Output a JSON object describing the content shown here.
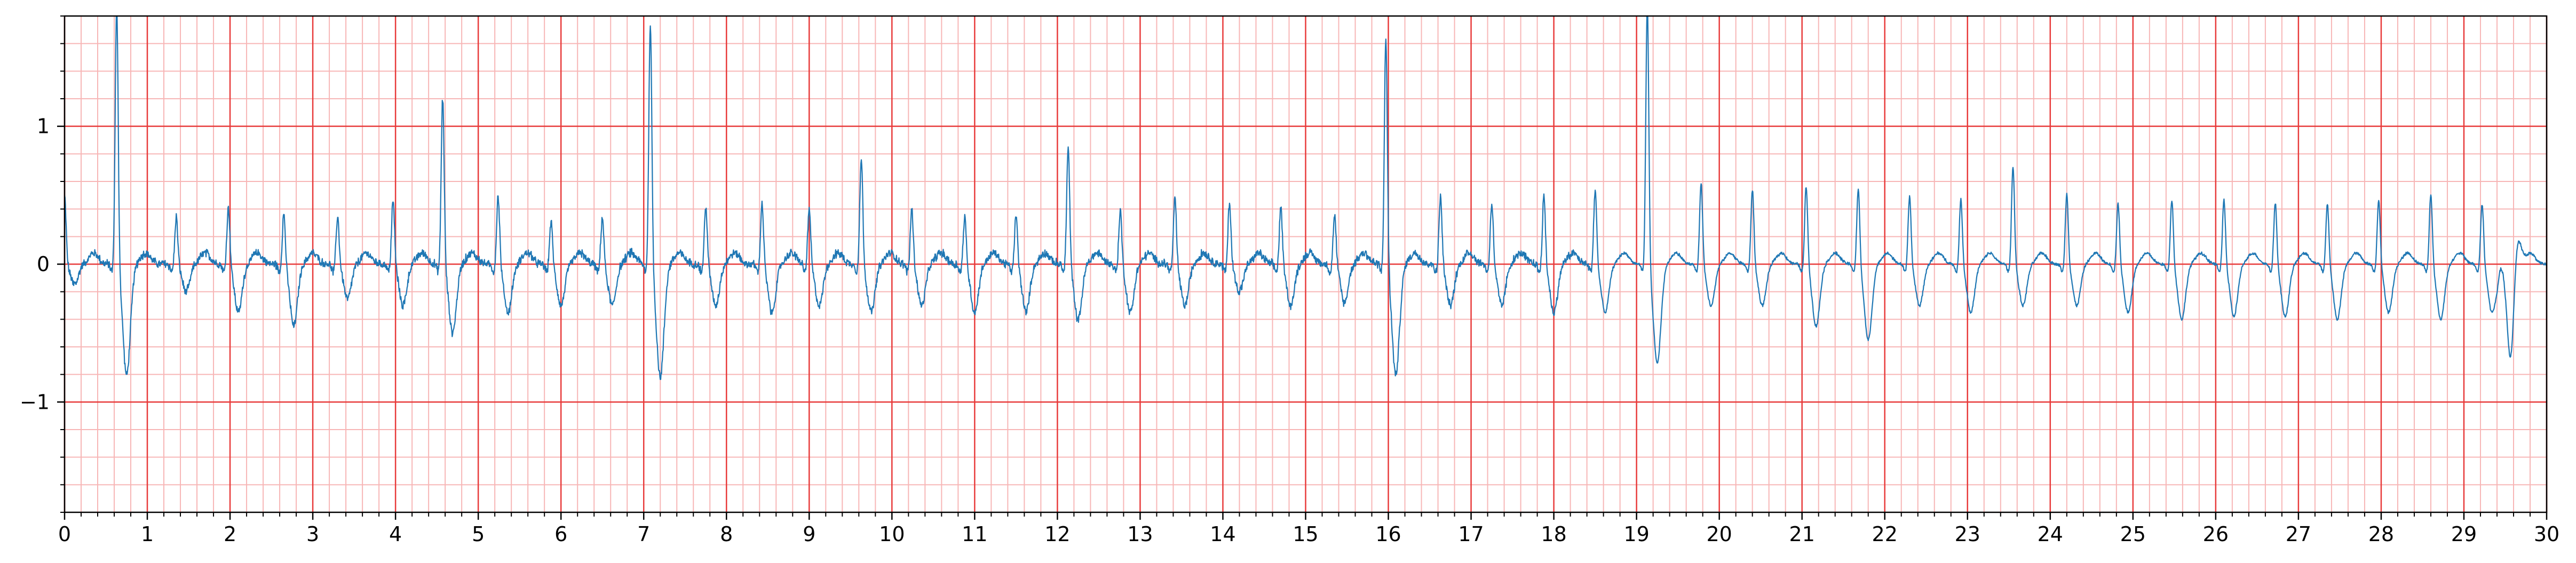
{
  "chart_data": {
    "type": "line",
    "title": "",
    "xlabel": "",
    "ylabel": "",
    "xlim": [
      0,
      30
    ],
    "ylim": [
      -1.8,
      1.8
    ],
    "x_ticks": [
      0,
      1,
      2,
      3,
      4,
      5,
      6,
      7,
      8,
      9,
      10,
      11,
      12,
      13,
      14,
      15,
      16,
      17,
      18,
      19,
      20,
      21,
      22,
      23,
      24,
      25,
      26,
      27,
      28,
      29,
      30
    ],
    "x_tick_labels": [
      "0",
      "1",
      "2",
      "3",
      "4",
      "5",
      "6",
      "7",
      "8",
      "9",
      "10",
      "11",
      "12",
      "13",
      "14",
      "15",
      "16",
      "17",
      "18",
      "19",
      "20",
      "21",
      "22",
      "23",
      "24",
      "25",
      "26",
      "27",
      "28",
      "29",
      "30"
    ],
    "y_ticks": [
      -1,
      0,
      1
    ],
    "y_tick_labels": [
      "−1",
      "0",
      "1"
    ],
    "x_minor_step": 0.2,
    "y_minor_step": 0.2,
    "grid": {
      "major": true,
      "minor": true,
      "major_color": "#e83b3b",
      "minor_color": "#f7b6b6"
    },
    "series": [
      {
        "color": "#1f77b4",
        "beats": [
          [
            0.0,
            0.5,
            -0.15
          ],
          [
            0.63,
            1.9,
            -0.8
          ],
          [
            1.35,
            0.35,
            -0.2
          ],
          [
            1.98,
            0.42,
            -0.35
          ],
          [
            2.65,
            0.38,
            -0.45
          ],
          [
            3.3,
            0.35,
            -0.25
          ],
          [
            3.97,
            0.47,
            -0.3
          ],
          [
            4.57,
            1.22,
            -0.5
          ],
          [
            5.24,
            0.5,
            -0.35
          ],
          [
            5.88,
            0.32,
            -0.3
          ],
          [
            6.5,
            0.35,
            -0.3
          ],
          [
            7.08,
            1.78,
            -0.82
          ],
          [
            7.75,
            0.42,
            -0.3
          ],
          [
            8.43,
            0.45,
            -0.35
          ],
          [
            9.0,
            0.4,
            -0.3
          ],
          [
            9.63,
            0.78,
            -0.35
          ],
          [
            10.24,
            0.4,
            -0.3
          ],
          [
            10.88,
            0.35,
            -0.35
          ],
          [
            11.5,
            0.36,
            -0.35
          ],
          [
            12.13,
            0.85,
            -0.4
          ],
          [
            12.76,
            0.4,
            -0.35
          ],
          [
            13.42,
            0.48,
            -0.3
          ],
          [
            14.08,
            0.45,
            -0.2
          ],
          [
            14.7,
            0.42,
            -0.3
          ],
          [
            15.35,
            0.36,
            -0.28
          ],
          [
            15.97,
            1.65,
            -0.8
          ],
          [
            16.63,
            0.5,
            -0.3
          ],
          [
            17.25,
            0.45,
            -0.3
          ],
          [
            17.88,
            0.5,
            -0.35
          ],
          [
            18.5,
            0.55,
            -0.35
          ],
          [
            19.13,
            1.9,
            -0.72
          ],
          [
            19.78,
            0.6,
            -0.3
          ],
          [
            20.4,
            0.55,
            -0.3
          ],
          [
            21.05,
            0.58,
            -0.45
          ],
          [
            21.68,
            0.56,
            -0.55
          ],
          [
            22.3,
            0.5,
            -0.3
          ],
          [
            22.92,
            0.48,
            -0.35
          ],
          [
            23.55,
            0.72,
            -0.3
          ],
          [
            24.2,
            0.52,
            -0.3
          ],
          [
            24.82,
            0.45,
            -0.35
          ],
          [
            25.47,
            0.48,
            -0.4
          ],
          [
            26.1,
            0.48,
            -0.38
          ],
          [
            26.72,
            0.46,
            -0.38
          ],
          [
            27.35,
            0.45,
            -0.4
          ],
          [
            27.97,
            0.48,
            -0.35
          ],
          [
            28.6,
            0.52,
            -0.4
          ],
          [
            29.22,
            0.45,
            -0.35
          ],
          [
            29.45,
            0.0,
            -0.95
          ]
        ]
      }
    ]
  }
}
